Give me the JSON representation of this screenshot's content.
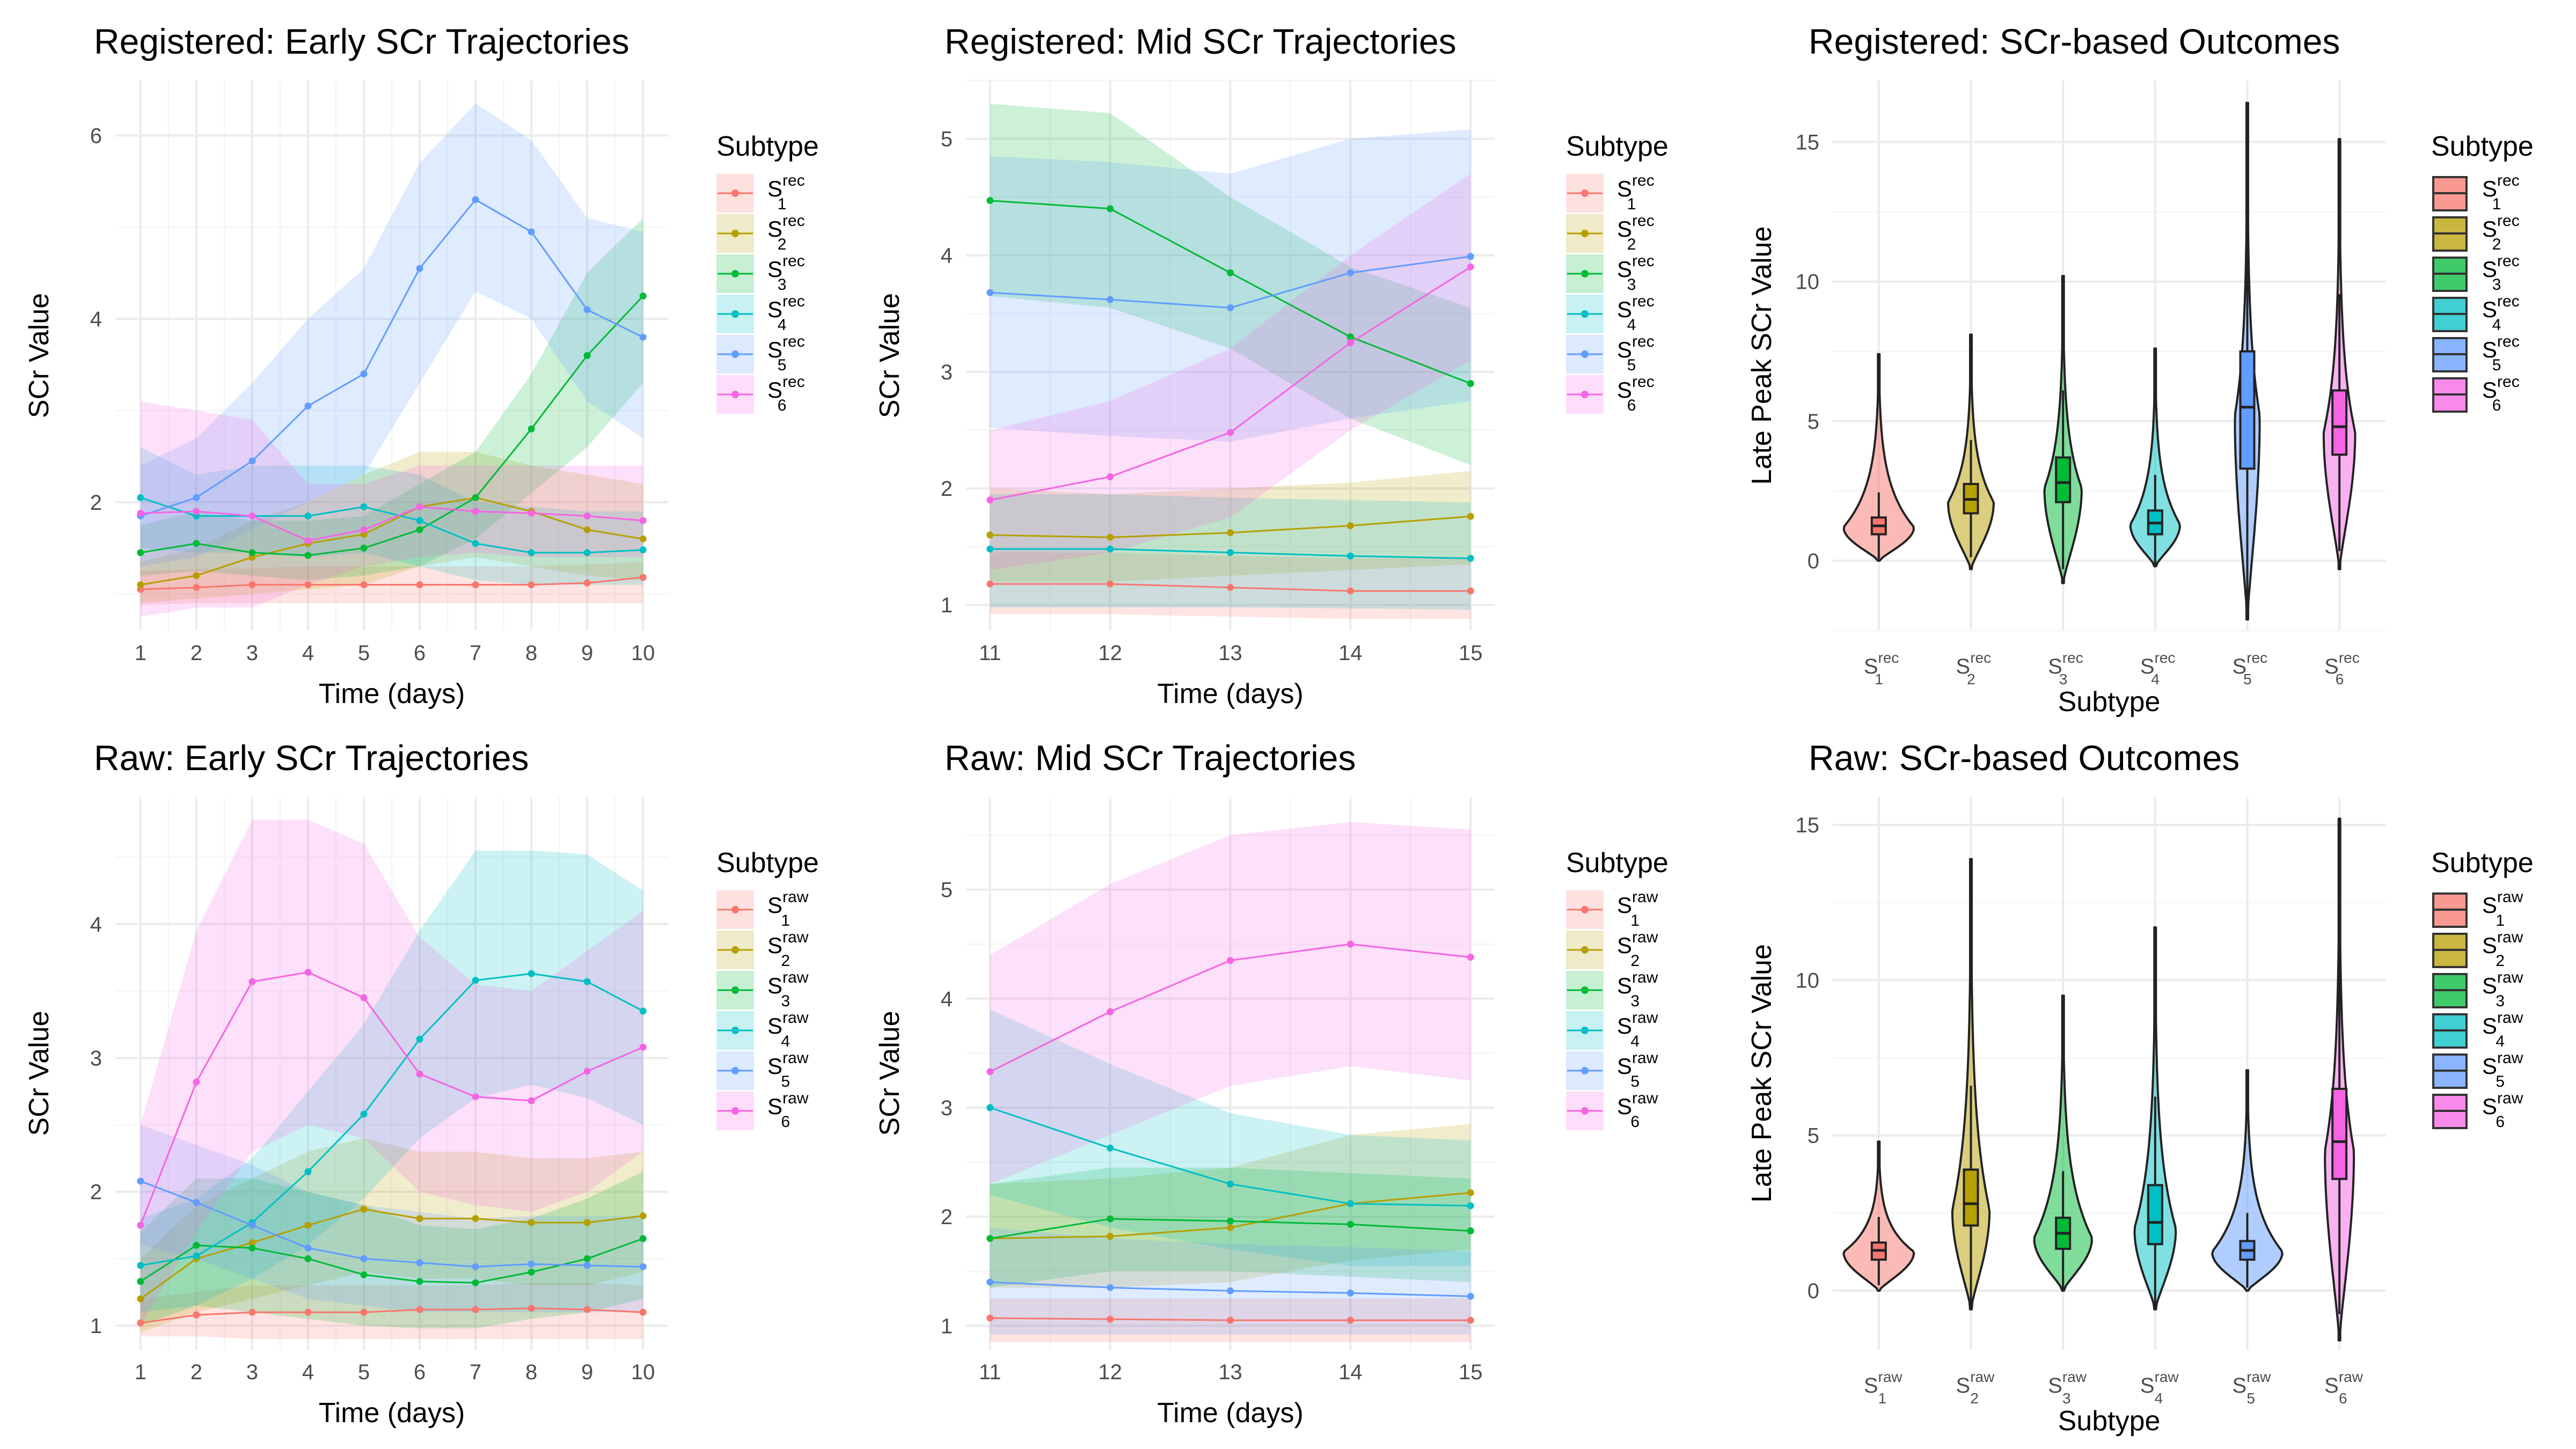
{
  "legend_title": "Subtype",
  "colors": [
    "#F8766D",
    "#B79F00",
    "#00BA38",
    "#00BFC4",
    "#619CFF",
    "#F564E3"
  ],
  "chart_data": [
    {
      "id": "reg_early",
      "type": "line",
      "title": "Registered: Early SCr Trajectories",
      "xlabel": "Time (days)",
      "ylabel": "SCr Value",
      "xlim": [
        0.55,
        10.45
      ],
      "ylim": [
        0.6,
        6.6
      ],
      "xticks": [
        1,
        2,
        3,
        4,
        5,
        6,
        7,
        8,
        9,
        10
      ],
      "yticks": [
        2,
        4,
        6
      ],
      "legend_base": "S",
      "legend_sup": "rec",
      "legend_subs": [
        "1",
        "2",
        "3",
        "4",
        "5",
        "6"
      ],
      "x": [
        1,
        2,
        3,
        4,
        5,
        6,
        7,
        8,
        9,
        10
      ],
      "series": [
        {
          "name": "S1rec",
          "values": [
            1.05,
            1.07,
            1.1,
            1.1,
            1.1,
            1.1,
            1.1,
            1.1,
            1.12,
            1.18
          ],
          "lower": [
            0.88,
            0.9,
            0.9,
            0.9,
            0.9,
            0.9,
            0.9,
            0.9,
            0.9,
            0.9
          ],
          "upper": [
            1.25,
            1.27,
            1.28,
            1.3,
            1.3,
            1.3,
            1.3,
            1.3,
            1.32,
            1.35
          ]
        },
        {
          "name": "S2rec",
          "values": [
            1.1,
            1.2,
            1.4,
            1.55,
            1.65,
            1.95,
            2.05,
            1.9,
            1.7,
            1.6
          ],
          "lower": [
            0.9,
            0.95,
            1.0,
            1.05,
            1.1,
            1.3,
            1.4,
            1.3,
            1.2,
            1.15
          ],
          "upper": [
            1.35,
            1.5,
            1.8,
            2.0,
            2.3,
            2.55,
            2.55,
            2.4,
            2.3,
            2.2
          ]
        },
        {
          "name": "S3rec",
          "values": [
            1.45,
            1.55,
            1.45,
            1.42,
            1.5,
            1.7,
            2.05,
            2.8,
            3.6,
            4.25
          ],
          "lower": [
            1.2,
            1.25,
            1.2,
            1.15,
            1.2,
            1.3,
            1.6,
            2.1,
            2.6,
            3.3
          ],
          "upper": [
            1.75,
            1.9,
            1.8,
            1.8,
            1.85,
            2.2,
            2.55,
            3.4,
            4.5,
            5.1
          ]
        },
        {
          "name": "S4rec",
          "values": [
            2.05,
            1.85,
            1.85,
            1.85,
            1.95,
            1.8,
            1.55,
            1.45,
            1.45,
            1.48
          ],
          "lower": [
            1.5,
            1.45,
            1.45,
            1.4,
            1.45,
            1.3,
            1.15,
            1.1,
            1.1,
            1.1
          ],
          "upper": [
            2.6,
            2.3,
            2.4,
            2.4,
            2.4,
            2.3,
            2.0,
            1.95,
            1.9,
            1.9
          ]
        },
        {
          "name": "S5rec",
          "values": [
            1.85,
            2.05,
            2.45,
            3.05,
            3.4,
            4.55,
            5.3,
            4.95,
            4.1,
            3.8
          ],
          "lower": [
            1.3,
            1.4,
            1.7,
            2.0,
            2.3,
            3.3,
            4.3,
            4.0,
            3.1,
            2.7
          ],
          "upper": [
            2.4,
            2.7,
            3.3,
            4.0,
            4.55,
            5.7,
            6.35,
            5.95,
            5.1,
            4.95
          ]
        },
        {
          "name": "S6rec",
          "values": [
            1.88,
            1.9,
            1.85,
            1.58,
            1.7,
            1.95,
            1.9,
            1.88,
            1.85,
            1.8
          ],
          "lower": [
            0.75,
            0.85,
            0.85,
            1.1,
            1.3,
            1.4,
            1.45,
            1.4,
            1.4,
            1.4
          ],
          "upper": [
            3.1,
            3.0,
            2.9,
            2.2,
            2.2,
            2.4,
            2.4,
            2.4,
            2.4,
            2.4
          ]
        }
      ]
    },
    {
      "id": "reg_mid",
      "type": "line",
      "title": "Registered: Mid SCr Trajectories",
      "xlabel": "Time (days)",
      "ylabel": "SCr Value",
      "xlim": [
        10.8,
        15.2
      ],
      "ylim": [
        0.78,
        5.5
      ],
      "xticks": [
        11,
        12,
        13,
        14,
        15
      ],
      "yticks": [
        1,
        2,
        3,
        4,
        5
      ],
      "legend_base": "S",
      "legend_sup": "rec",
      "legend_subs": [
        "1",
        "2",
        "3",
        "4",
        "5",
        "6"
      ],
      "x": [
        11,
        12,
        13,
        14,
        15
      ],
      "series": [
        {
          "name": "S1rec",
          "values": [
            1.18,
            1.18,
            1.15,
            1.12,
            1.12
          ],
          "lower": [
            0.92,
            0.92,
            0.9,
            0.88,
            0.88
          ],
          "upper": [
            1.45,
            1.45,
            1.42,
            1.4,
            1.4
          ]
        },
        {
          "name": "S2rec",
          "values": [
            1.6,
            1.58,
            1.62,
            1.68,
            1.76
          ],
          "lower": [
            1.2,
            1.2,
            1.25,
            1.3,
            1.35
          ],
          "upper": [
            2.0,
            1.95,
            2.0,
            2.05,
            2.15
          ]
        },
        {
          "name": "S3rec",
          "values": [
            4.47,
            4.4,
            3.85,
            3.3,
            2.9
          ],
          "lower": [
            3.65,
            3.55,
            3.2,
            2.6,
            2.2
          ],
          "upper": [
            5.3,
            5.22,
            4.5,
            3.9,
            3.55
          ]
        },
        {
          "name": "S4rec",
          "values": [
            1.48,
            1.48,
            1.45,
            1.42,
            1.4
          ],
          "lower": [
            0.98,
            0.98,
            0.98,
            0.97,
            0.96
          ],
          "upper": [
            1.95,
            1.95,
            1.92,
            1.9,
            1.88
          ]
        },
        {
          "name": "S5rec",
          "values": [
            3.68,
            3.62,
            3.55,
            3.85,
            3.99
          ],
          "lower": [
            2.52,
            2.45,
            2.4,
            2.6,
            2.75
          ],
          "upper": [
            4.85,
            4.8,
            4.7,
            5.0,
            5.08
          ]
        },
        {
          "name": "S6rec",
          "values": [
            1.9,
            2.1,
            2.48,
            3.25,
            3.9
          ],
          "lower": [
            1.3,
            1.45,
            1.75,
            2.5,
            3.1
          ],
          "upper": [
            2.5,
            2.75,
            3.2,
            4.0,
            4.7
          ]
        }
      ]
    },
    {
      "id": "reg_out",
      "type": "violin",
      "title": "Registered: SCr-based Outcomes",
      "xlabel": "Subtype",
      "ylabel": "Late Peak SCr Value",
      "ylim": [
        -2.5,
        17.2
      ],
      "yticks": [
        0,
        5,
        10,
        15
      ],
      "categories": [
        "S1rec",
        "S2rec",
        "S3rec",
        "S4rec",
        "S5rec",
        "S6rec"
      ],
      "legend_base": "S",
      "legend_sup": "rec",
      "legend_subs": [
        "1",
        "2",
        "3",
        "4",
        "5",
        "6"
      ],
      "violins": [
        {
          "min": 0.0,
          "max": 7.4,
          "q1": 0.95,
          "median": 1.25,
          "q3": 1.55,
          "mode": 1.2,
          "width": 0.85
        },
        {
          "min": -0.3,
          "max": 8.1,
          "q1": 1.7,
          "median": 2.2,
          "q3": 2.75,
          "mode": 2.1,
          "width": 0.55
        },
        {
          "min": -0.8,
          "max": 10.2,
          "q1": 2.1,
          "median": 2.8,
          "q3": 3.7,
          "mode": 2.6,
          "width": 0.45
        },
        {
          "min": -0.2,
          "max": 7.6,
          "q1": 0.95,
          "median": 1.35,
          "q3": 1.8,
          "mode": 1.3,
          "width": 0.6
        },
        {
          "min": -2.1,
          "max": 16.4,
          "q1": 3.3,
          "median": 5.5,
          "q3": 7.5,
          "mode": 5.2,
          "width": 0.3
        },
        {
          "min": -0.3,
          "max": 15.1,
          "q1": 3.8,
          "median": 4.8,
          "q3": 6.1,
          "mode": 4.6,
          "width": 0.38
        }
      ]
    },
    {
      "id": "raw_early",
      "type": "line",
      "title": "Raw: Early SCr Trajectories",
      "xlabel": "Time (days)",
      "ylabel": "SCr Value",
      "xlim": [
        0.55,
        10.45
      ],
      "ylim": [
        0.82,
        4.95
      ],
      "xticks": [
        1,
        2,
        3,
        4,
        5,
        6,
        7,
        8,
        9,
        10
      ],
      "yticks": [
        1,
        2,
        3,
        4
      ],
      "legend_base": "S",
      "legend_sup": "raw",
      "legend_subs": [
        "1",
        "2",
        "3",
        "4",
        "5",
        "6"
      ],
      "x": [
        1,
        2,
        3,
        4,
        5,
        6,
        7,
        8,
        9,
        10
      ],
      "series": [
        {
          "name": "S1raw",
          "values": [
            1.02,
            1.08,
            1.1,
            1.1,
            1.1,
            1.12,
            1.12,
            1.13,
            1.12,
            1.1
          ],
          "lower": [
            0.92,
            0.92,
            0.9,
            0.9,
            0.9,
            0.9,
            0.9,
            0.9,
            0.9,
            0.9
          ],
          "upper": [
            1.2,
            1.25,
            1.3,
            1.3,
            1.3,
            1.3,
            1.3,
            1.32,
            1.32,
            1.3
          ]
        },
        {
          "name": "S2raw",
          "values": [
            1.2,
            1.5,
            1.62,
            1.75,
            1.87,
            1.8,
            1.8,
            1.77,
            1.77,
            1.82
          ],
          "lower": [
            0.95,
            1.1,
            1.2,
            1.3,
            1.4,
            1.35,
            1.35,
            1.3,
            1.3,
            1.4
          ],
          "upper": [
            1.5,
            1.9,
            2.1,
            2.3,
            2.4,
            2.3,
            2.3,
            2.25,
            2.25,
            2.3
          ]
        },
        {
          "name": "S3raw",
          "values": [
            1.33,
            1.6,
            1.58,
            1.5,
            1.38,
            1.33,
            1.32,
            1.4,
            1.5,
            1.65
          ],
          "lower": [
            1.0,
            1.15,
            1.1,
            1.05,
            1.0,
            0.98,
            0.98,
            1.05,
            1.1,
            1.2
          ],
          "upper": [
            1.7,
            2.1,
            2.1,
            2.0,
            1.9,
            1.75,
            1.72,
            1.8,
            1.95,
            2.15
          ]
        },
        {
          "name": "S4raw",
          "values": [
            1.45,
            1.52,
            1.77,
            2.15,
            2.58,
            3.14,
            3.58,
            3.63,
            3.57,
            3.35
          ],
          "lower": [
            1.1,
            1.15,
            1.35,
            1.6,
            1.95,
            2.4,
            2.7,
            2.8,
            2.7,
            2.5
          ],
          "upper": [
            1.8,
            1.95,
            2.25,
            2.75,
            3.25,
            3.95,
            4.55,
            4.55,
            4.52,
            4.25
          ]
        },
        {
          "name": "S5raw",
          "values": [
            2.08,
            1.92,
            1.75,
            1.58,
            1.5,
            1.47,
            1.44,
            1.46,
            1.45,
            1.44
          ],
          "lower": [
            1.6,
            1.5,
            1.35,
            1.2,
            1.15,
            1.1,
            1.1,
            1.1,
            1.1,
            1.1
          ],
          "upper": [
            2.5,
            2.35,
            2.2,
            2.0,
            1.9,
            1.85,
            1.8,
            1.82,
            1.82,
            1.82
          ]
        },
        {
          "name": "S6raw",
          "values": [
            1.75,
            2.82,
            3.57,
            3.64,
            3.45,
            2.88,
            2.71,
            2.68,
            2.9,
            3.08
          ],
          "lower": [
            1.0,
            1.7,
            2.3,
            2.5,
            2.4,
            2.0,
            1.9,
            1.85,
            2.0,
            2.3
          ],
          "upper": [
            2.5,
            3.95,
            4.78,
            4.78,
            4.6,
            3.9,
            3.55,
            3.5,
            3.8,
            4.1
          ]
        }
      ]
    },
    {
      "id": "raw_mid",
      "type": "line",
      "title": "Raw: Mid SCr Trajectories",
      "xlabel": "Time (days)",
      "ylabel": "SCr Value",
      "xlim": [
        10.8,
        15.2
      ],
      "ylim": [
        0.78,
        5.85
      ],
      "xticks": [
        11,
        12,
        13,
        14,
        15
      ],
      "yticks": [
        1,
        2,
        3,
        4,
        5
      ],
      "legend_base": "S",
      "legend_sup": "raw",
      "legend_subs": [
        "1",
        "2",
        "3",
        "4",
        "5",
        "6"
      ],
      "x": [
        11,
        12,
        13,
        14,
        15
      ],
      "series": [
        {
          "name": "S1raw",
          "values": [
            1.07,
            1.06,
            1.05,
            1.05,
            1.05
          ],
          "lower": [
            0.85,
            0.85,
            0.85,
            0.85,
            0.85
          ],
          "upper": [
            1.25,
            1.25,
            1.25,
            1.25,
            1.25
          ]
        },
        {
          "name": "S2raw",
          "values": [
            1.8,
            1.82,
            1.9,
            2.12,
            2.22
          ],
          "lower": [
            1.35,
            1.35,
            1.4,
            1.6,
            1.7
          ],
          "upper": [
            2.3,
            2.35,
            2.45,
            2.75,
            2.85
          ]
        },
        {
          "name": "S3raw",
          "values": [
            1.8,
            1.98,
            1.96,
            1.93,
            1.87
          ],
          "lower": [
            1.35,
            1.5,
            1.5,
            1.45,
            1.4
          ],
          "upper": [
            2.3,
            2.45,
            2.45,
            2.4,
            2.35
          ]
        },
        {
          "name": "S4raw",
          "values": [
            3.0,
            2.63,
            2.3,
            2.12,
            2.1
          ],
          "lower": [
            2.2,
            1.9,
            1.7,
            1.55,
            1.55
          ],
          "upper": [
            3.9,
            3.4,
            2.95,
            2.75,
            2.7
          ]
        },
        {
          "name": "S5raw",
          "values": [
            1.4,
            1.35,
            1.32,
            1.3,
            1.27
          ],
          "lower": [
            0.92,
            0.92,
            0.92,
            0.92,
            0.92
          ],
          "upper": [
            1.9,
            1.8,
            1.75,
            1.72,
            1.68
          ]
        },
        {
          "name": "S6raw",
          "values": [
            3.33,
            3.88,
            4.35,
            4.5,
            4.38
          ],
          "lower": [
            2.3,
            2.75,
            3.2,
            3.38,
            3.25
          ],
          "upper": [
            4.4,
            5.05,
            5.5,
            5.62,
            5.55
          ]
        }
      ]
    },
    {
      "id": "raw_out",
      "type": "violin",
      "title": "Raw: SCr-based Outcomes",
      "xlabel": "Subtype",
      "ylabel": "Late Peak SCr Value",
      "ylim": [
        -1.9,
        15.9
      ],
      "yticks": [
        0,
        5,
        10,
        15
      ],
      "categories": [
        "S1raw",
        "S2raw",
        "S3raw",
        "S4raw",
        "S5raw",
        "S6raw"
      ],
      "legend_base": "S",
      "legend_sup": "raw",
      "legend_subs": [
        "1",
        "2",
        "3",
        "4",
        "5",
        "6"
      ],
      "violins": [
        {
          "min": 0.0,
          "max": 4.8,
          "q1": 1.0,
          "median": 1.3,
          "q3": 1.55,
          "mode": 1.25,
          "width": 0.85
        },
        {
          "min": -0.6,
          "max": 13.9,
          "q1": 2.1,
          "median": 2.8,
          "q3": 3.9,
          "mode": 2.6,
          "width": 0.45
        },
        {
          "min": 0.0,
          "max": 9.5,
          "q1": 1.35,
          "median": 1.85,
          "q3": 2.35,
          "mode": 1.7,
          "width": 0.7
        },
        {
          "min": -0.6,
          "max": 11.7,
          "q1": 1.5,
          "median": 2.2,
          "q3": 3.4,
          "mode": 2.0,
          "width": 0.5
        },
        {
          "min": 0.0,
          "max": 7.1,
          "q1": 1.0,
          "median": 1.3,
          "q3": 1.6,
          "mode": 1.25,
          "width": 0.85
        },
        {
          "min": -1.6,
          "max": 15.2,
          "q1": 3.6,
          "median": 4.8,
          "q3": 6.5,
          "mode": 4.5,
          "width": 0.35
        }
      ]
    }
  ]
}
